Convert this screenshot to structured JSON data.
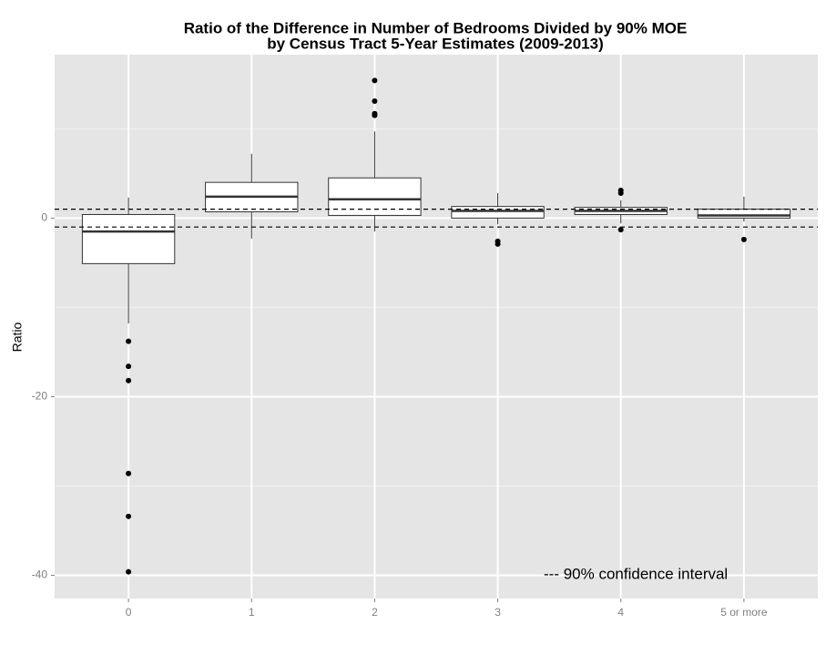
{
  "chart_data": {
    "type": "box",
    "title": [
      "Ratio of the Difference in Number of Bedrooms Divided by 90% MOE",
      "by Census Tract 5-Year Estimates (2009-2013)"
    ],
    "y_label": "Ratio",
    "annotation": "--- 90% confidence interval",
    "categories": [
      "0",
      "1",
      "2",
      "3",
      "4",
      "5 or more"
    ],
    "boxes": [
      {
        "low": -11.8,
        "q1": -5.1,
        "median": -1.5,
        "q3": 0.4,
        "high": 2.3,
        "outliers": [
          -13.8,
          -16.6,
          -18.2,
          -28.6,
          -33.4,
          -39.6
        ]
      },
      {
        "low": -2.3,
        "q1": 0.7,
        "median": 2.4,
        "q3": 4.0,
        "high": 7.2,
        "outliers": []
      },
      {
        "low": -1.5,
        "q1": 0.3,
        "median": 2.1,
        "q3": 4.5,
        "high": 9.7,
        "outliers": [
          15.4,
          13.1,
          11.7,
          11.5
        ]
      },
      {
        "low": -0.7,
        "q1": 0.0,
        "median": 0.8,
        "q3": 1.3,
        "high": 2.8,
        "outliers": [
          -2.6,
          -2.9
        ]
      },
      {
        "low": -0.6,
        "q1": 0.4,
        "median": 0.8,
        "q3": 1.2,
        "high": 2.0,
        "outliers": [
          3.1,
          2.8,
          -1.3
        ]
      },
      {
        "low": -0.4,
        "q1": 0.0,
        "median": 0.3,
        "q3": 1.0,
        "high": 2.4,
        "outliers": [
          -2.4
        ]
      }
    ],
    "reference_lines": [
      -1,
      1
    ],
    "ylim": [
      -42.6,
      18.3
    ],
    "yticks": [
      -40,
      -20,
      0
    ],
    "y_minor_ticks": [
      -30,
      -10,
      10
    ],
    "grid": true,
    "box_fill": "#ffffff",
    "box_stroke": "#333333",
    "panel_color": "#e5e5e5"
  }
}
